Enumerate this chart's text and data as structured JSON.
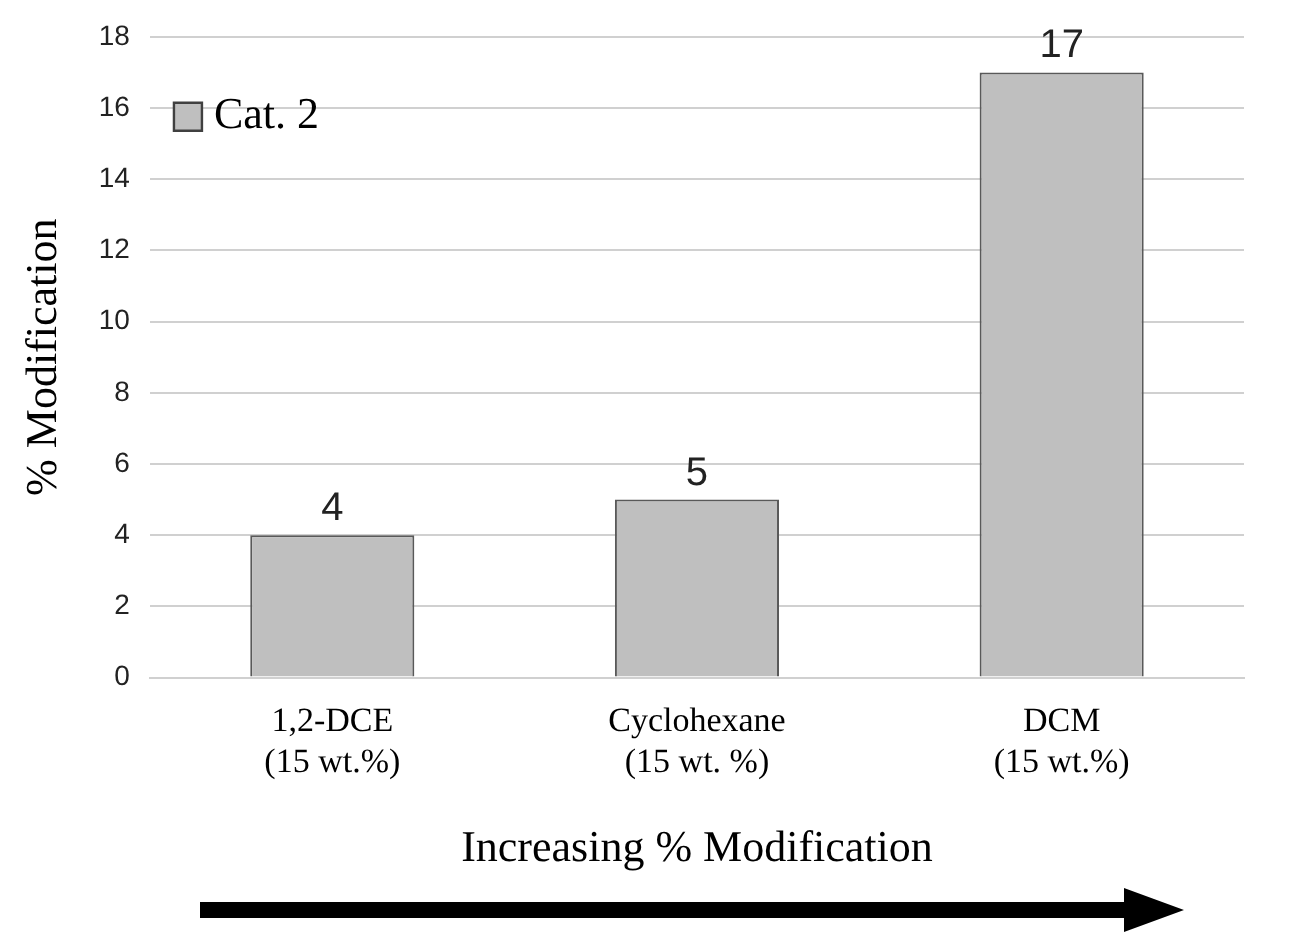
{
  "chart_data": {
    "type": "bar",
    "xlabel": "Increasing % Modification",
    "ylabel": "% Modification",
    "categories": [
      "1,2-DCE\n(15 wt.%)",
      "Cyclohexane\n(15 wt. %)",
      "DCM\n(15 wt.%)"
    ],
    "series": [
      {
        "name": "Cat. 2",
        "color": "#bfbfbf",
        "values": [
          4,
          5,
          17
        ]
      }
    ],
    "ylim": [
      0,
      18
    ],
    "yticks": [
      0,
      2,
      4,
      6,
      8,
      10,
      12,
      14,
      16,
      18
    ],
    "grid": "y",
    "legend": "top left",
    "data_labels": true
  }
}
